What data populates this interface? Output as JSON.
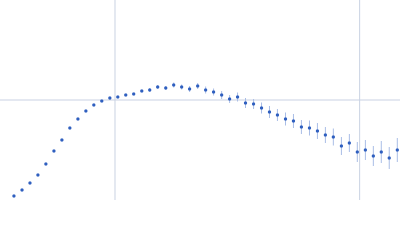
{
  "chart_data": {
    "type": "scatter",
    "x": [
      0.0174,
      0.024,
      0.0305,
      0.037,
      0.0435,
      0.0501,
      0.0566,
      0.0631,
      0.0697,
      0.0762,
      0.0827,
      0.0892,
      0.0958,
      0.1023,
      0.1088,
      0.1153,
      0.1219,
      0.1284,
      0.1349,
      0.1415,
      0.148,
      0.1545,
      0.161,
      0.1676,
      0.1741,
      0.1806,
      0.1872,
      0.1937,
      0.2002,
      0.2067,
      0.2133,
      0.2198,
      0.2263,
      0.2328,
      0.2394,
      0.2459,
      0.2524,
      0.259,
      0.2655,
      0.272,
      0.2785,
      0.2851,
      0.2916,
      0.2981,
      0.3047,
      0.3112,
      0.3177,
      0.3242,
      0.3308
    ],
    "series": [
      {
        "color": "#2f5fbf",
        "error_color": "#a9bde6",
        "values": [
          0.04,
          0.1,
          0.17,
          0.25,
          0.36,
          0.49,
          0.6,
          0.72,
          0.81,
          0.89,
          0.95,
          0.99,
          1.02,
          1.03,
          1.05,
          1.06,
          1.09,
          1.1,
          1.13,
          1.12,
          1.15,
          1.13,
          1.11,
          1.14,
          1.1,
          1.08,
          1.05,
          1.01,
          1.03,
          0.97,
          0.96,
          0.92,
          0.88,
          0.85,
          0.81,
          0.79,
          0.73,
          0.72,
          0.69,
          0.65,
          0.63,
          0.54,
          0.57,
          0.48,
          0.5,
          0.44,
          0.48,
          0.42,
          0.5
        ],
        "errors": [
          0.005,
          0.005,
          0.005,
          0.005,
          0.006,
          0.006,
          0.006,
          0.007,
          0.007,
          0.008,
          0.008,
          0.01,
          0.01,
          0.012,
          0.012,
          0.015,
          0.015,
          0.02,
          0.02,
          0.02,
          0.025,
          0.025,
          0.03,
          0.03,
          0.035,
          0.035,
          0.04,
          0.04,
          0.045,
          0.05,
          0.05,
          0.055,
          0.06,
          0.06,
          0.065,
          0.07,
          0.07,
          0.075,
          0.08,
          0.08,
          0.085,
          0.09,
          0.09,
          0.1,
          0.1,
          0.1,
          0.11,
          0.11,
          0.12
        ]
      }
    ],
    "xlim": [
      0.006,
      0.333
    ],
    "ylim": [
      0,
      2
    ],
    "xgrid": [
      0.1,
      0.3
    ],
    "ygrid": [
      1
    ],
    "grid_color": "#c9d2e3"
  }
}
